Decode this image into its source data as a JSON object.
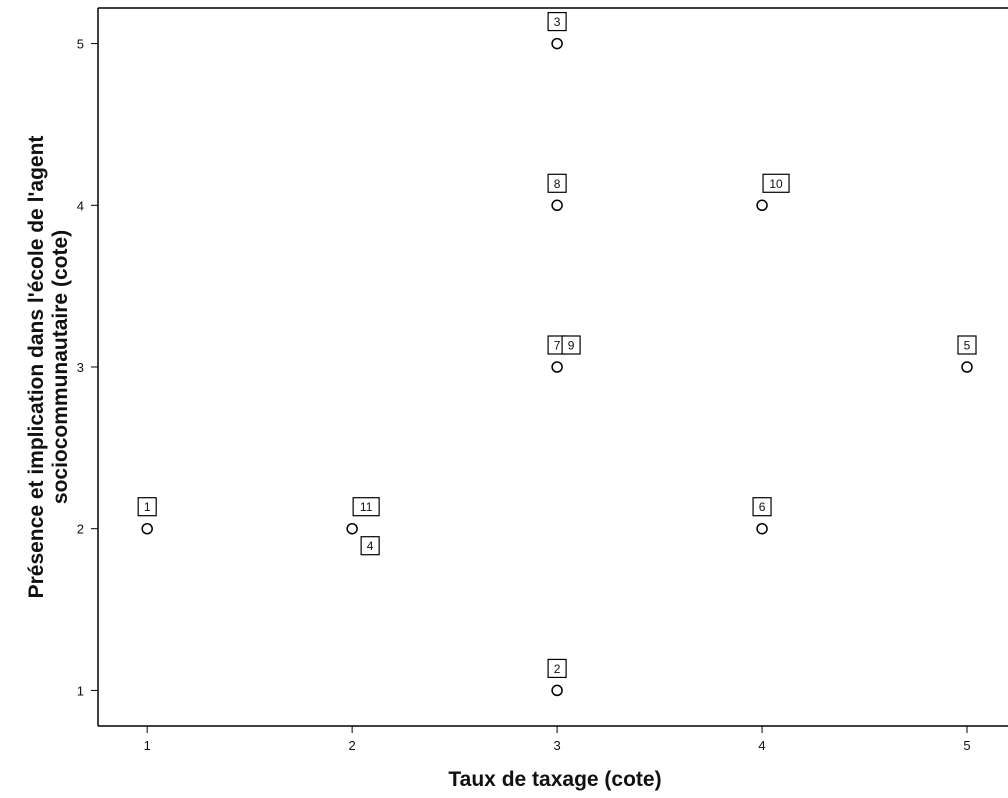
{
  "chart_data": {
    "type": "scatter",
    "xlabel": "Taux de taxage (cote)",
    "ylabel_lines": [
      "Présence et implication dans l'école de l'agent",
      "sociocommunautaire (cote)"
    ],
    "xlim": [
      0.76,
      5.2
    ],
    "ylim": [
      0.78,
      5.22
    ],
    "x_ticks": [
      1,
      2,
      3,
      4,
      5
    ],
    "y_ticks": [
      1,
      2,
      3,
      4,
      5
    ],
    "x_tick_labels": [
      "1",
      "2",
      "3",
      "4",
      "5"
    ],
    "y_tick_labels": [
      "1",
      "2",
      "3",
      "4",
      "5"
    ],
    "grid": false,
    "points": [
      {
        "x": 1,
        "y": 2
      },
      {
        "x": 2,
        "y": 2
      },
      {
        "x": 3,
        "y": 1
      },
      {
        "x": 3,
        "y": 3
      },
      {
        "x": 3,
        "y": 4
      },
      {
        "x": 3,
        "y": 5
      },
      {
        "x": 4,
        "y": 2
      },
      {
        "x": 4,
        "y": 4
      },
      {
        "x": 5,
        "y": 3
      }
    ],
    "point_labels": [
      {
        "text": "1",
        "x": 1,
        "y": 2,
        "pos": "above"
      },
      {
        "text": "11",
        "x": 2,
        "y": 2,
        "pos": "above-right"
      },
      {
        "text": "4",
        "x": 2,
        "y": 2,
        "pos": "below-right"
      },
      {
        "text": "2",
        "x": 3,
        "y": 1,
        "pos": "above"
      },
      {
        "text": "7",
        "x": 3,
        "y": 3,
        "pos": "above"
      },
      {
        "text": "9",
        "x": 3,
        "y": 3,
        "pos": "above-right"
      },
      {
        "text": "8",
        "x": 3,
        "y": 4,
        "pos": "above"
      },
      {
        "text": "3",
        "x": 3,
        "y": 5,
        "pos": "above"
      },
      {
        "text": "6",
        "x": 4,
        "y": 2,
        "pos": "above"
      },
      {
        "text": "10",
        "x": 4,
        "y": 4,
        "pos": "above-right"
      },
      {
        "text": "5",
        "x": 5,
        "y": 3,
        "pos": "above"
      }
    ]
  }
}
